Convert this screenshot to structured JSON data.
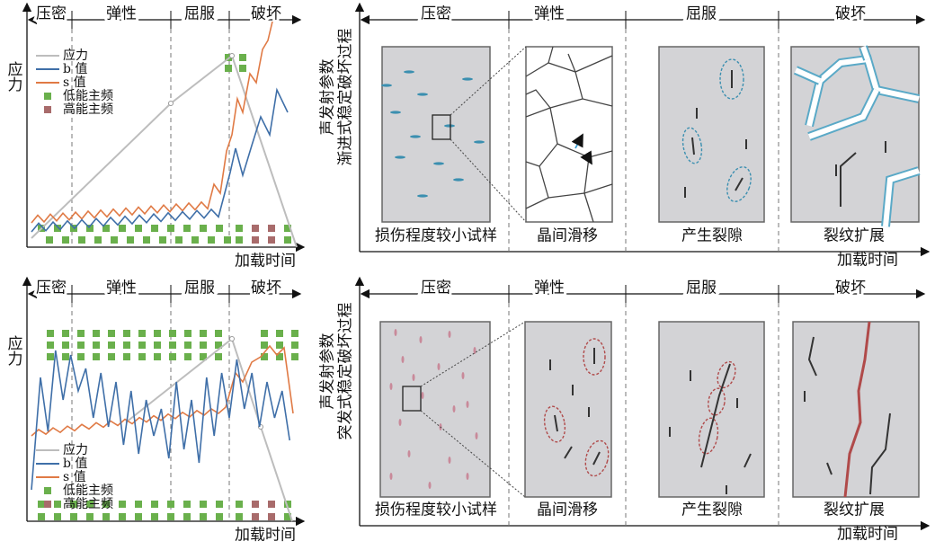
{
  "panels": [
    {
      "chart": {
        "y_label": "应力",
        "x_label": "加载时间",
        "stages": [
          "压密",
          "弹性",
          "屈服",
          "破坏"
        ],
        "legend": [
          "应力",
          "b 值",
          "s 值",
          "低能主频",
          "高能主频"
        ]
      },
      "schematic": {
        "y_label": [
          "声发射参数",
          "渐进式稳定破坏过程"
        ],
        "stages": [
          "压密",
          "弹性",
          "屈服",
          "破坏"
        ],
        "captions": [
          "损伤程度较小试样",
          "晶间滑移",
          "产生裂隙",
          "裂纹扩展"
        ],
        "x_label": "加载时间"
      }
    },
    {
      "chart": {
        "y_label": "应力",
        "x_label": "加载时间",
        "stages": [
          "压密",
          "弹性",
          "屈服",
          "破坏"
        ],
        "legend": [
          "应力",
          "b 值",
          "s 值",
          "低能主频",
          "高能主频"
        ]
      },
      "schematic": {
        "y_label": [
          "声发射参数",
          "突发式稳定破坏过程"
        ],
        "stages": [
          "压密",
          "弹性",
          "屈服",
          "破坏"
        ],
        "captions": [
          "损伤程度较小试样",
          "晶间滑移",
          "产生裂隙",
          "裂纹扩展"
        ],
        "x_label": "加载时间"
      }
    }
  ]
}
